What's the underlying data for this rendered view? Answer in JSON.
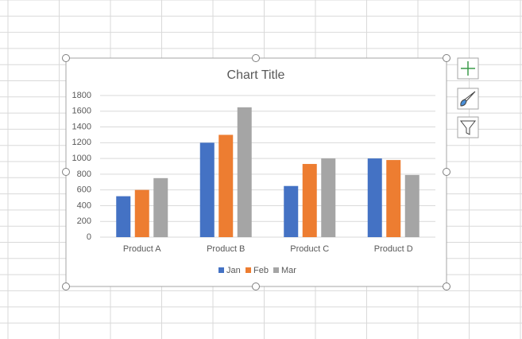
{
  "chart_data": {
    "type": "bar",
    "title": "Chart Title",
    "categories": [
      "Product A",
      "Product B",
      "Product C",
      "Product D"
    ],
    "series": [
      {
        "name": "Jan",
        "color": "#4472c4",
        "values": [
          520,
          1200,
          650,
          1000
        ]
      },
      {
        "name": "Feb",
        "color": "#ed7d31",
        "values": [
          600,
          1300,
          930,
          980
        ]
      },
      {
        "name": "Mar",
        "color": "#a5a5a5",
        "values": [
          750,
          1650,
          1000,
          790
        ]
      }
    ],
    "ylim": [
      0,
      1800
    ],
    "yticks": [
      0,
      200,
      400,
      600,
      800,
      1000,
      1200,
      1400,
      1600,
      1800
    ],
    "grid": true,
    "legend": "bottom"
  }
}
